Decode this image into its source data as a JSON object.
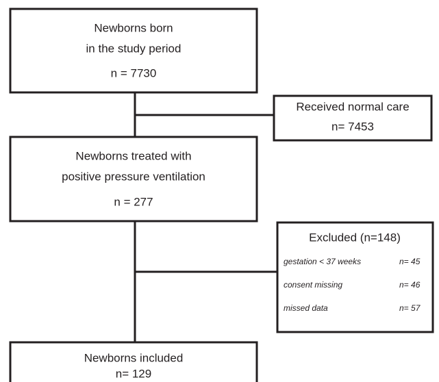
{
  "nodes": [
    {
      "lines": [
        "Newborns born",
        "in the study period",
        "n = 7730"
      ]
    },
    {
      "lines": [
        "Received normal care",
        "n= 7453"
      ]
    },
    {
      "lines": [
        "Newborns treated with",
        "positive pressure ventilation",
        "n = 277"
      ]
    },
    {
      "title": "Excluded (n=148)",
      "items": [
        {
          "label": "gestation < 37 weeks",
          "count": "n= 45"
        },
        {
          "label": "consent missing",
          "count": "n= 46"
        },
        {
          "label": "missed data",
          "count": "n= 57"
        }
      ]
    },
    {
      "lines": [
        "Newborns included",
        "n= 129"
      ]
    }
  ]
}
